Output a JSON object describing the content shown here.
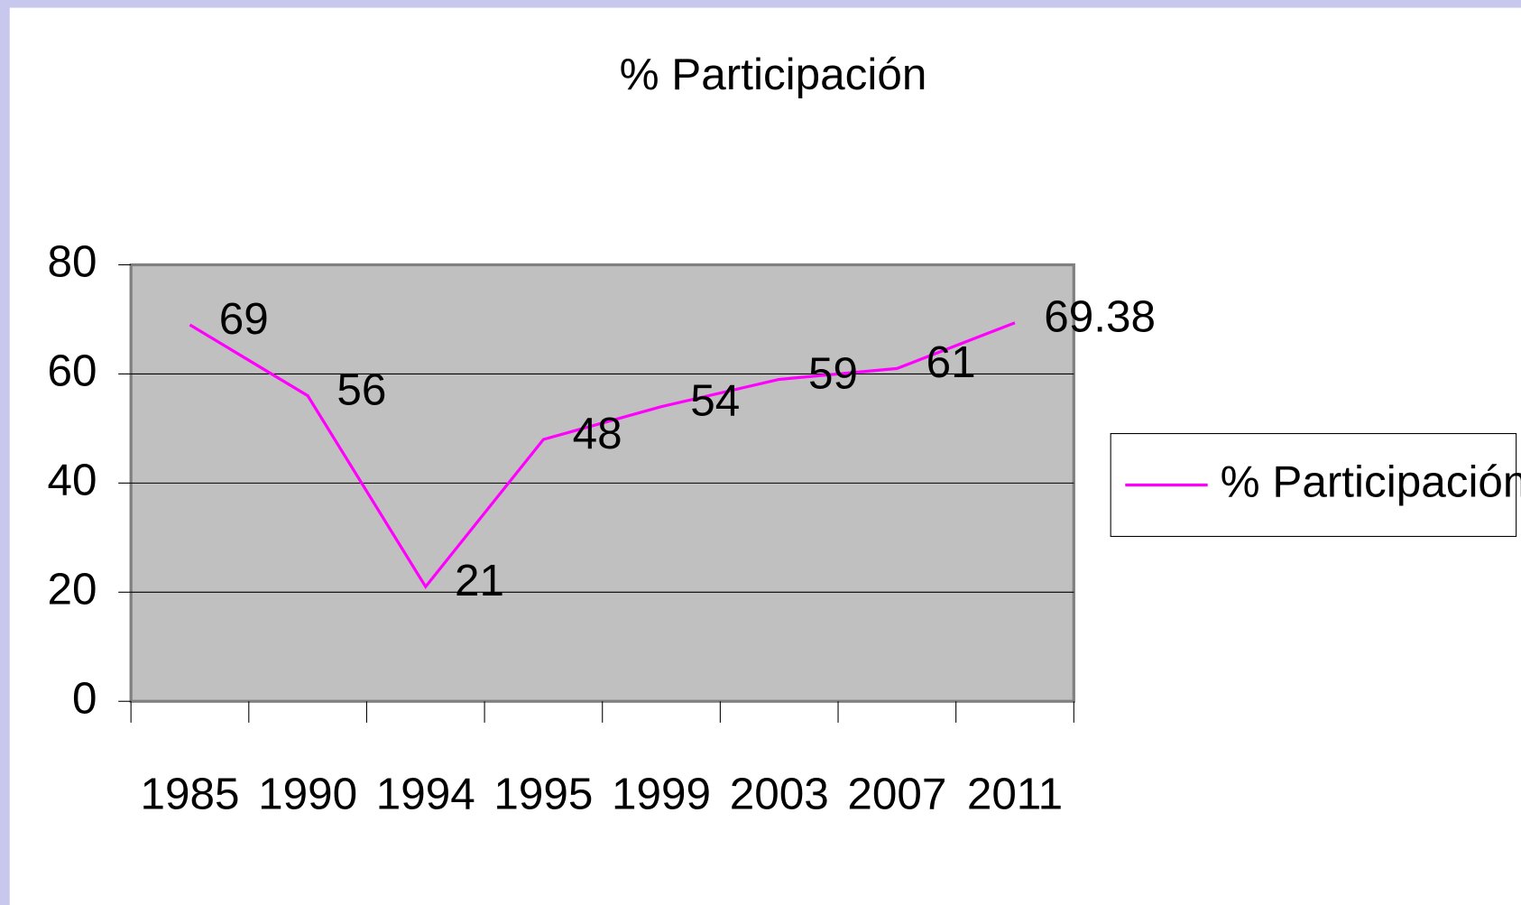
{
  "chart_data": {
    "type": "line",
    "title": "% Participación",
    "categories": [
      "1985",
      "1990",
      "1994",
      "1995",
      "1999",
      "2003",
      "2007",
      "2011"
    ],
    "series": [
      {
        "name": "% Participación",
        "color": "#ff00ff",
        "values": [
          69,
          56,
          21,
          48,
          54,
          59,
          61,
          69.38
        ]
      }
    ],
    "ylim": [
      0,
      80
    ],
    "yticks": [
      0,
      20,
      40,
      60,
      80
    ],
    "grid": true,
    "legend": "right"
  }
}
